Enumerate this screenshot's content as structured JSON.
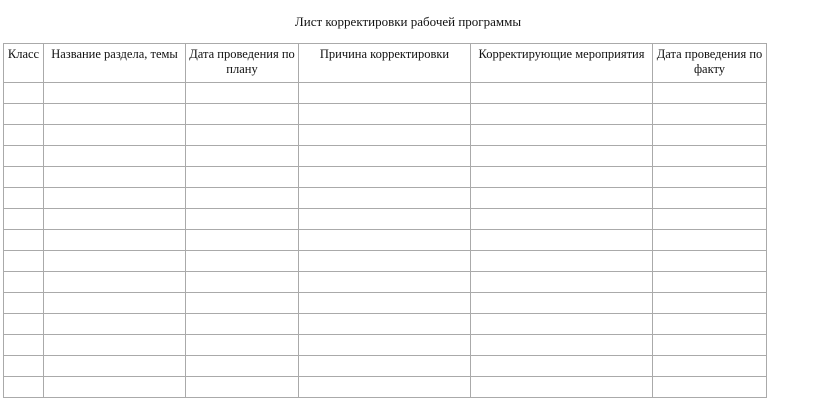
{
  "title": "Лист корректировки рабочей программы",
  "columns": [
    "Класс",
    "Название раздела, темы",
    "Дата проведения по плану",
    "Причина корректировки",
    "Корректирующие мероприятия",
    "Дата проведения по факту"
  ],
  "empty_rows": 15
}
